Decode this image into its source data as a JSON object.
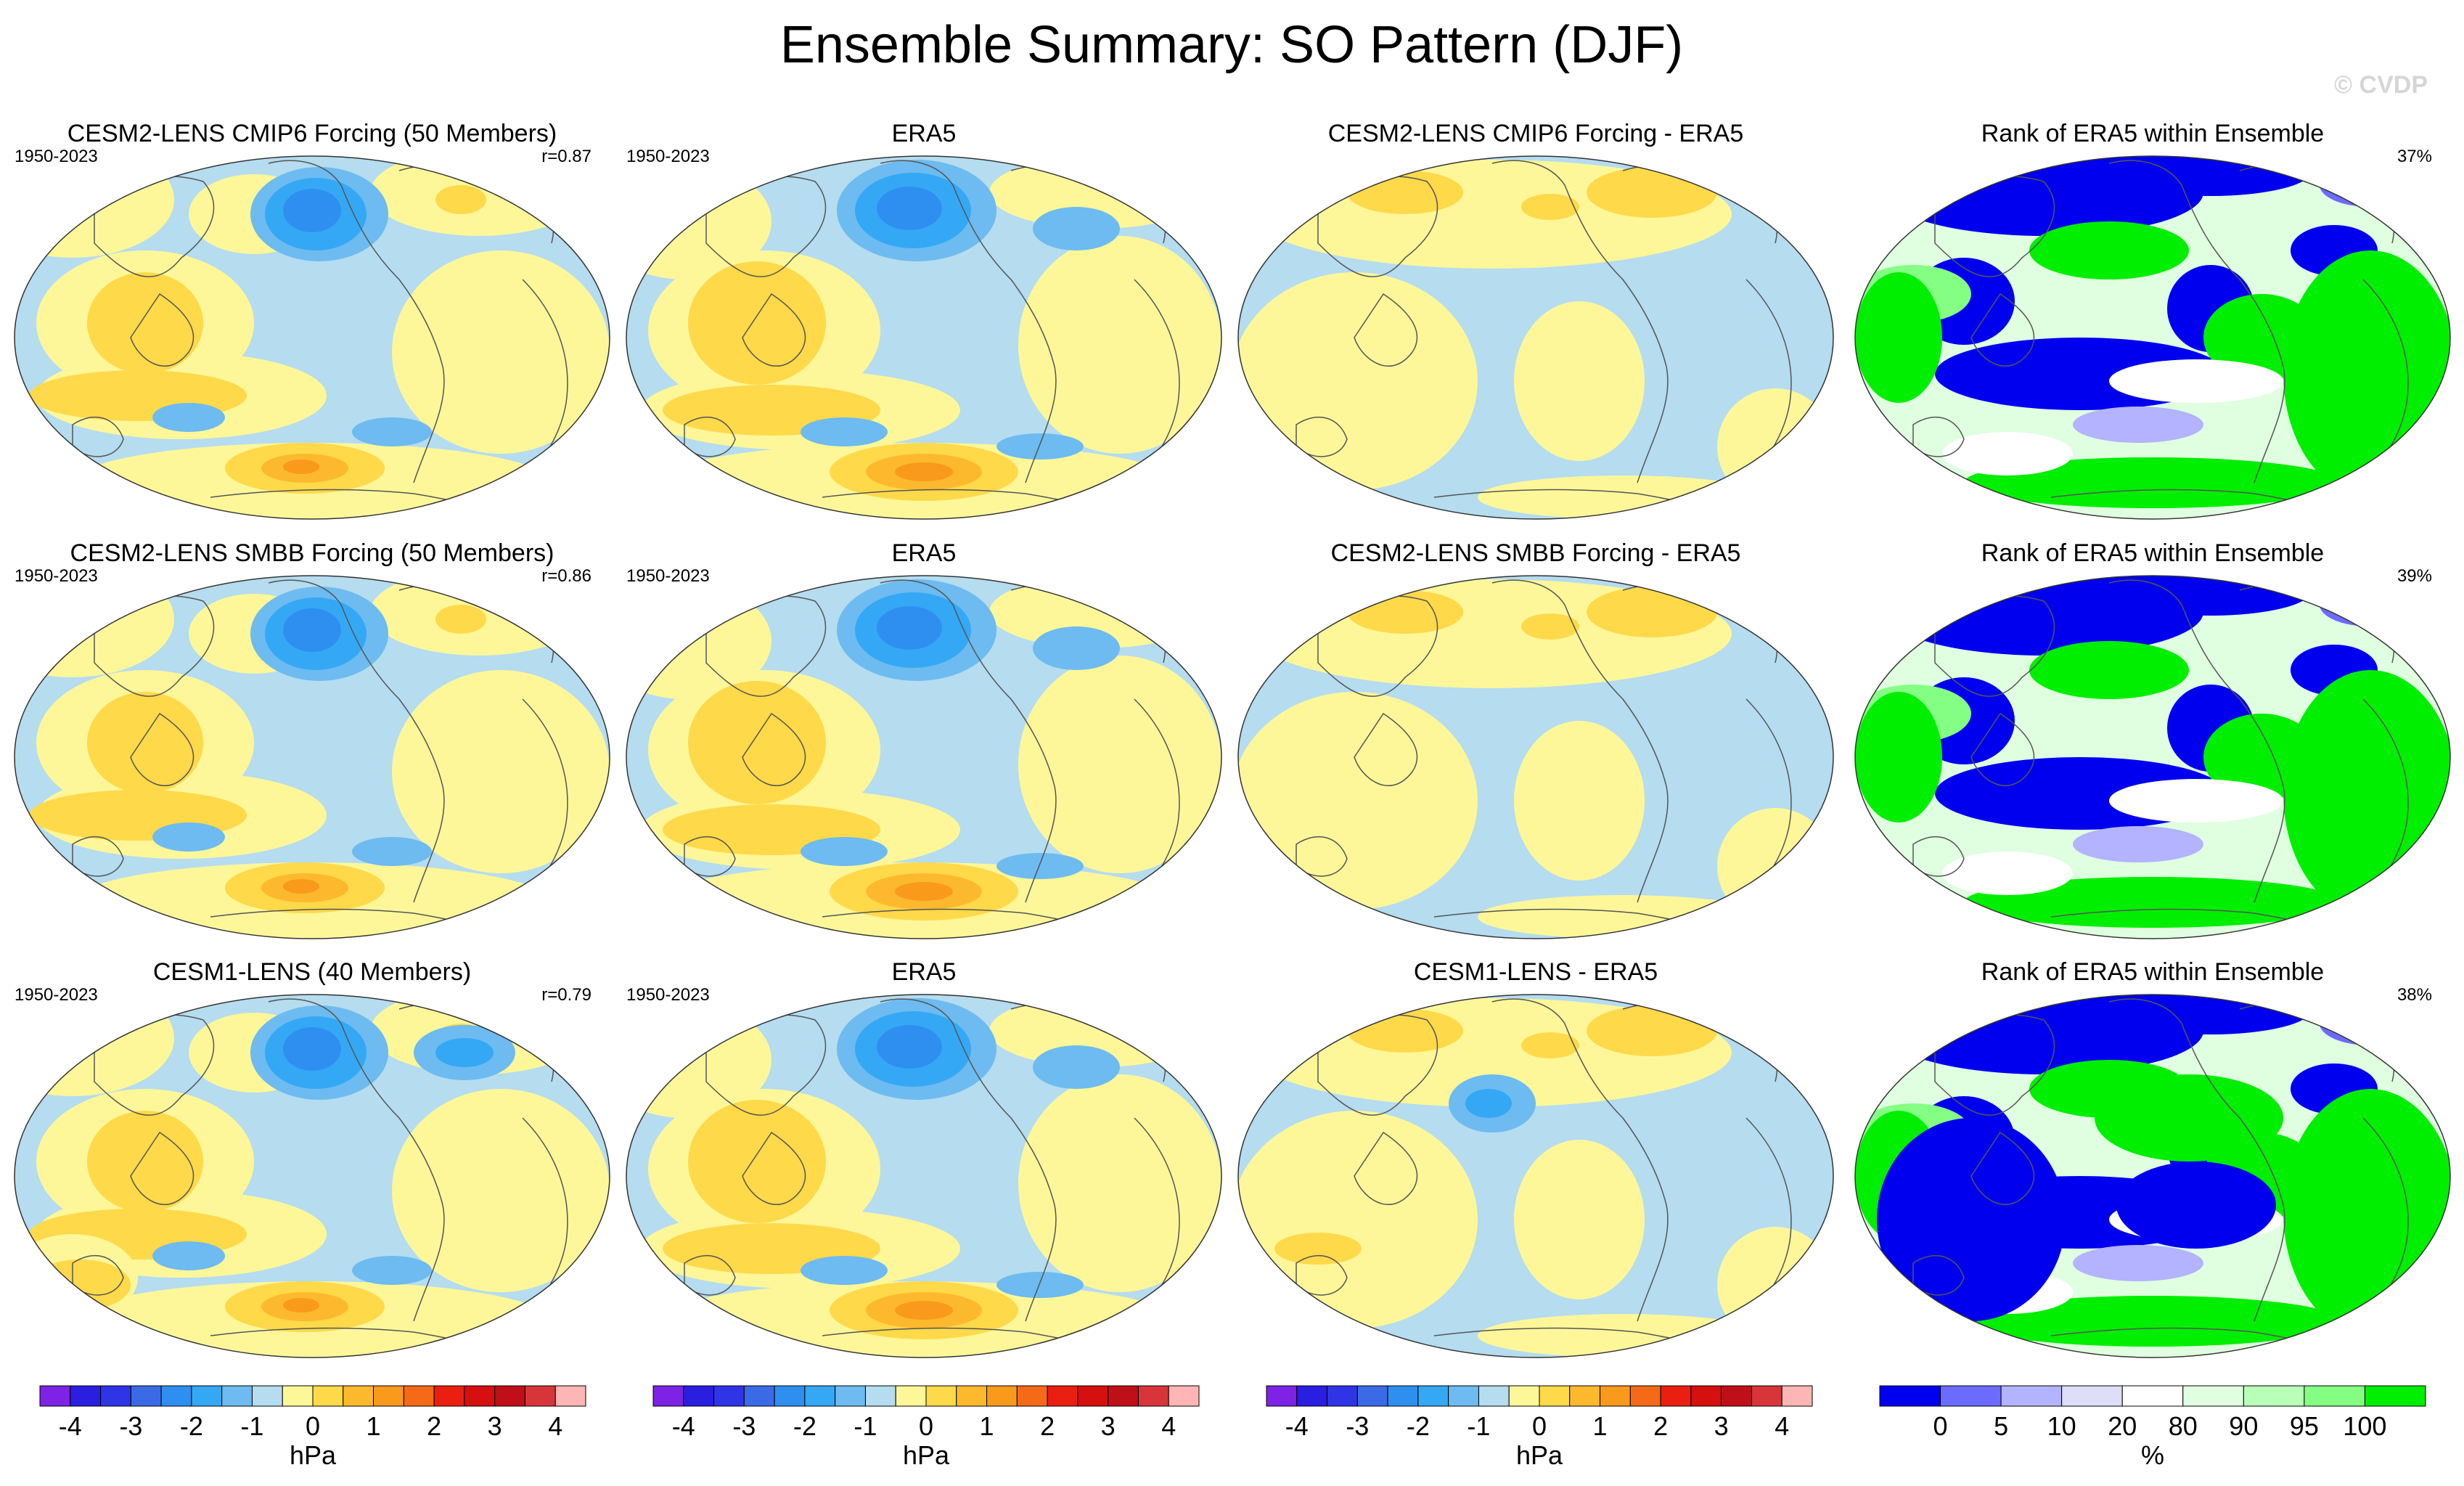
{
  "title": "Ensemble Summary: SO Pattern (DJF)",
  "watermark": "© CVDP",
  "chart_data": {
    "type": "map-panel-grid",
    "rows": [
      {
        "panels": [
          {
            "kind": "model",
            "title": "CESM2-LENS CMIP6 Forcing (50 Members)",
            "period": "1950-2023",
            "stat": "r=0.87"
          },
          {
            "kind": "obs",
            "title": "ERA5",
            "period": "1950-2023"
          },
          {
            "kind": "diff",
            "title": "CESM2-LENS CMIP6 Forcing - ERA5"
          },
          {
            "kind": "rank",
            "title": "Rank of ERA5 within Ensemble",
            "stat": "37%"
          }
        ]
      },
      {
        "panels": [
          {
            "kind": "model",
            "title": "CESM2-LENS SMBB Forcing (50 Members)",
            "period": "1950-2023",
            "stat": "r=0.86"
          },
          {
            "kind": "obs",
            "title": "ERA5",
            "period": "1950-2023"
          },
          {
            "kind": "diff",
            "title": "CESM2-LENS SMBB Forcing - ERA5"
          },
          {
            "kind": "rank",
            "title": "Rank of ERA5 within Ensemble",
            "stat": "39%"
          }
        ]
      },
      {
        "panels": [
          {
            "kind": "model",
            "title": "CESM1-LENS (40 Members)",
            "period": "1950-2023",
            "stat": "r=0.79"
          },
          {
            "kind": "obs",
            "title": "ERA5",
            "period": "1950-2023"
          },
          {
            "kind": "diff",
            "title": "CESM1-LENS - ERA5"
          },
          {
            "kind": "rank",
            "title": "Rank of ERA5 within Ensemble",
            "stat": "38%"
          }
        ]
      }
    ],
    "colorbars": [
      {
        "unit": "hPa",
        "colors": [
          "#7e22e6",
          "#2a1ee0",
          "#2f35e6",
          "#3b6ae6",
          "#2f8ff0",
          "#34a8f5",
          "#6dbbf0",
          "#b5dcef",
          "#fdf79a",
          "#fed94a",
          "#fdb92e",
          "#f99a1c",
          "#f56a16",
          "#ea1f12",
          "#d60f0f",
          "#bf0f18",
          "#d7353a",
          "#fdb5b5"
        ],
        "tick_labels": [
          "-4",
          "-3",
          "-2",
          "-1",
          "0",
          "1",
          "2",
          "3",
          "4"
        ],
        "tick_edges": [
          1,
          3,
          5,
          7,
          9,
          11,
          13,
          15,
          17
        ]
      },
      {
        "unit": "hPa",
        "colors": [
          "#7e22e6",
          "#2a1ee0",
          "#2f35e6",
          "#3b6ae6",
          "#2f8ff0",
          "#34a8f5",
          "#6dbbf0",
          "#b5dcef",
          "#fdf79a",
          "#fed94a",
          "#fdb92e",
          "#f99a1c",
          "#f56a16",
          "#ea1f12",
          "#d60f0f",
          "#bf0f18",
          "#d7353a",
          "#fdb5b5"
        ],
        "tick_labels": [
          "-4",
          "-3",
          "-2",
          "-1",
          "0",
          "1",
          "2",
          "3",
          "4"
        ],
        "tick_edges": [
          1,
          3,
          5,
          7,
          9,
          11,
          13,
          15,
          17
        ]
      },
      {
        "unit": "hPa",
        "colors": [
          "#7e22e6",
          "#2a1ee0",
          "#2f35e6",
          "#3b6ae6",
          "#2f8ff0",
          "#34a8f5",
          "#6dbbf0",
          "#b5dcef",
          "#fdf79a",
          "#fed94a",
          "#fdb92e",
          "#f99a1c",
          "#f56a16",
          "#ea1f12",
          "#d60f0f",
          "#bf0f18",
          "#d7353a",
          "#fdb5b5"
        ],
        "tick_labels": [
          "-4",
          "-3",
          "-2",
          "-1",
          "0",
          "1",
          "2",
          "3",
          "4"
        ],
        "tick_edges": [
          1,
          3,
          5,
          7,
          9,
          11,
          13,
          15,
          17
        ]
      },
      {
        "unit": "%",
        "colors": [
          "#0000ee",
          "#6b6bff",
          "#b3b3ff",
          "#dedef8",
          "#ffffff",
          "#e0ffe0",
          "#b9ffb9",
          "#84ff84",
          "#00ee00"
        ],
        "tick_labels": [
          "0",
          "5",
          "10",
          "20",
          "80",
          "90",
          "95",
          "100"
        ],
        "tick_edges": [
          1,
          2,
          3,
          4,
          5,
          6,
          7,
          8
        ]
      }
    ]
  }
}
